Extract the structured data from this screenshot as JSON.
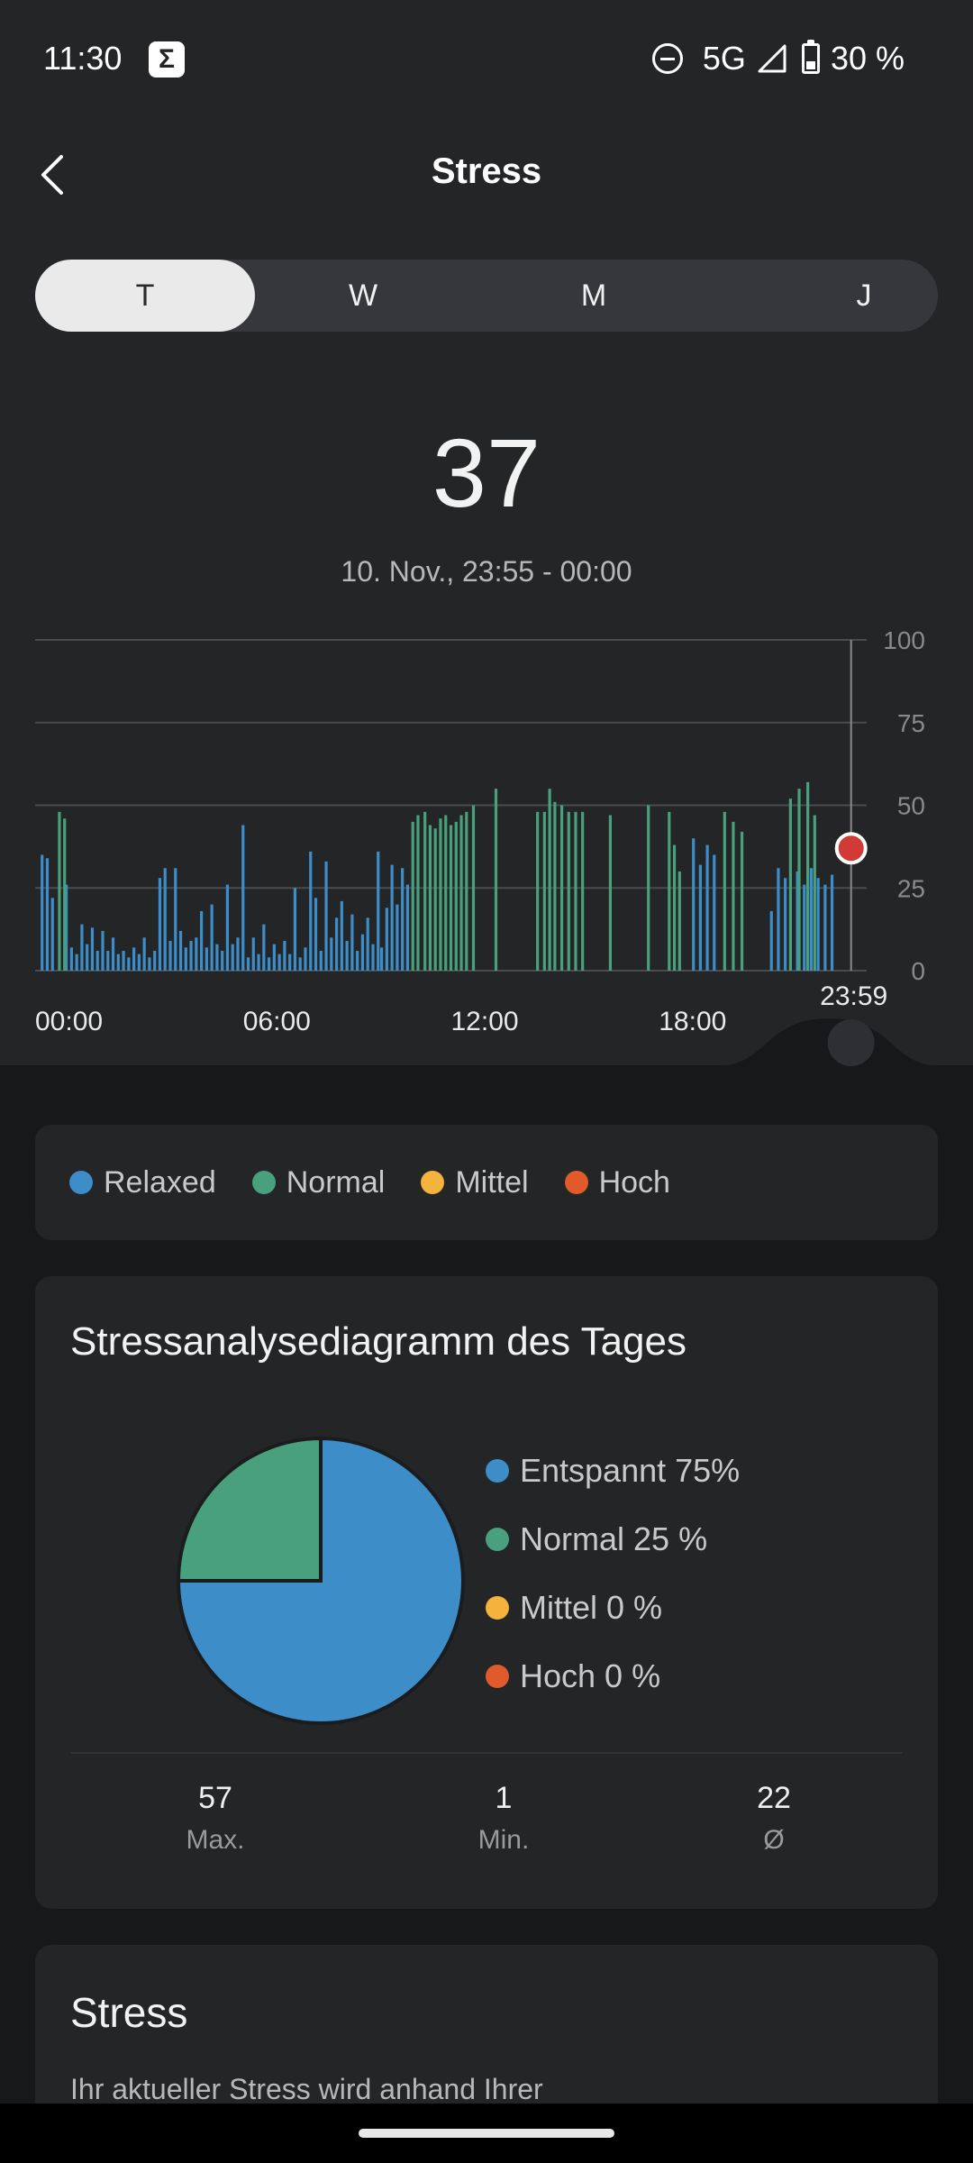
{
  "status_bar": {
    "time": "11:30",
    "app_icon_glyph": "Σ",
    "network": "5G",
    "battery": "30 %",
    "icons": [
      "dnd-icon",
      "signal-icon",
      "battery-icon"
    ]
  },
  "header": {
    "title": "Stress",
    "back_icon": "chevron-left-icon"
  },
  "period_tabs": [
    {
      "label": "T",
      "active": true
    },
    {
      "label": "W",
      "active": false
    },
    {
      "label": "M",
      "active": false
    },
    {
      "label": "J",
      "active": false
    }
  ],
  "current": {
    "value": "37",
    "range": "10. Nov., 23:55 - 00:00"
  },
  "colors": {
    "relaxed": "#3d8dc8",
    "normal": "#48a07c",
    "mittel": "#f3b33d",
    "hoch": "#e05a2b",
    "cursor_dot": "#d13a35"
  },
  "chart_data": {
    "type": "bar",
    "y_ticks": [
      "100",
      "75",
      "50",
      "25",
      "0"
    ],
    "ylim": [
      0,
      100
    ],
    "x_ticks": [
      "00:00",
      "06:00",
      "12:00",
      "18:00"
    ],
    "x_range_hours": [
      0,
      24
    ],
    "cursor": {
      "label": "23:59",
      "value": 37
    },
    "series": [
      {
        "name": "Relaxed",
        "color": "#3d8dc8",
        "points": [
          [
            0.2,
            35
          ],
          [
            0.35,
            34
          ],
          [
            0.5,
            22
          ],
          [
            0.9,
            26
          ],
          [
            1.05,
            7
          ],
          [
            1.2,
            5
          ],
          [
            1.35,
            14
          ],
          [
            1.5,
            8
          ],
          [
            1.65,
            13
          ],
          [
            1.8,
            6
          ],
          [
            1.95,
            12
          ],
          [
            2.1,
            6
          ],
          [
            2.25,
            10
          ],
          [
            2.4,
            5
          ],
          [
            2.55,
            6
          ],
          [
            2.7,
            4
          ],
          [
            2.85,
            7
          ],
          [
            3.0,
            5
          ],
          [
            3.15,
            10
          ],
          [
            3.3,
            4
          ],
          [
            3.45,
            6
          ],
          [
            3.6,
            28
          ],
          [
            3.75,
            31
          ],
          [
            3.9,
            9
          ],
          [
            4.05,
            31
          ],
          [
            4.2,
            12
          ],
          [
            4.35,
            7
          ],
          [
            4.5,
            9
          ],
          [
            4.65,
            10
          ],
          [
            4.8,
            18
          ],
          [
            4.95,
            7
          ],
          [
            5.1,
            20
          ],
          [
            5.25,
            8
          ],
          [
            5.4,
            6
          ],
          [
            5.55,
            26
          ],
          [
            5.7,
            8
          ],
          [
            5.85,
            10
          ],
          [
            6.0,
            44
          ],
          [
            6.15,
            4
          ],
          [
            6.3,
            10
          ],
          [
            6.45,
            5
          ],
          [
            6.6,
            14
          ],
          [
            6.75,
            4
          ],
          [
            6.9,
            8
          ],
          [
            7.05,
            5
          ],
          [
            7.2,
            9
          ],
          [
            7.35,
            5
          ],
          [
            7.5,
            25
          ],
          [
            7.65,
            4
          ],
          [
            7.8,
            7
          ],
          [
            7.95,
            36
          ],
          [
            8.1,
            22
          ],
          [
            8.25,
            6
          ],
          [
            8.4,
            33
          ],
          [
            8.55,
            10
          ],
          [
            8.7,
            16
          ],
          [
            8.85,
            21
          ],
          [
            9.0,
            9
          ],
          [
            9.15,
            17
          ],
          [
            9.3,
            6
          ],
          [
            9.45,
            11
          ],
          [
            9.6,
            16
          ],
          [
            9.75,
            8
          ],
          [
            9.9,
            36
          ],
          [
            10.0,
            7
          ],
          [
            10.15,
            19
          ],
          [
            10.3,
            32
          ],
          [
            10.45,
            20
          ],
          [
            10.6,
            31
          ],
          [
            10.75,
            26
          ],
          [
            19.0,
            40
          ],
          [
            19.2,
            32
          ],
          [
            19.4,
            38
          ],
          [
            19.6,
            35
          ],
          [
            21.25,
            18
          ],
          [
            21.45,
            31
          ],
          [
            21.65,
            28
          ],
          [
            22.0,
            30
          ],
          [
            22.2,
            26
          ],
          [
            22.4,
            31
          ],
          [
            22.6,
            28
          ],
          [
            22.8,
            26
          ],
          [
            23.0,
            29
          ]
        ]
      },
      {
        "name": "Normal",
        "color": "#48a07c",
        "points": [
          [
            0.7,
            48
          ],
          [
            0.85,
            46
          ],
          [
            10.9,
            45
          ],
          [
            11.05,
            47
          ],
          [
            11.25,
            48
          ],
          [
            11.4,
            44
          ],
          [
            11.55,
            43
          ],
          [
            11.7,
            46
          ],
          [
            11.85,
            47
          ],
          [
            12.0,
            44
          ],
          [
            12.15,
            45
          ],
          [
            12.3,
            47
          ],
          [
            12.45,
            48
          ],
          [
            12.65,
            50
          ],
          [
            13.3,
            55
          ],
          [
            14.5,
            48
          ],
          [
            14.7,
            48
          ],
          [
            14.85,
            55
          ],
          [
            15.0,
            51
          ],
          [
            15.2,
            50
          ],
          [
            15.4,
            48
          ],
          [
            15.6,
            48
          ],
          [
            15.8,
            48
          ],
          [
            16.6,
            47
          ],
          [
            17.7,
            50
          ],
          [
            18.3,
            48
          ],
          [
            18.45,
            38
          ],
          [
            18.6,
            30
          ],
          [
            19.9,
            48
          ],
          [
            20.15,
            45
          ],
          [
            20.4,
            42
          ],
          [
            21.8,
            52
          ],
          [
            22.05,
            55
          ],
          [
            22.3,
            57
          ],
          [
            22.5,
            47
          ]
        ]
      }
    ]
  },
  "legend": [
    {
      "label": "Relaxed",
      "color": "#3d8dc8"
    },
    {
      "label": "Normal",
      "color": "#48a07c"
    },
    {
      "label": "Mittel",
      "color": "#f3b33d"
    },
    {
      "label": "Hoch",
      "color": "#e05a2b"
    }
  ],
  "analysis": {
    "title": "Stressanalysediagramm des Tages",
    "pie": [
      {
        "label": "Entspannt 75%",
        "value": 75,
        "color": "#3d8dc8"
      },
      {
        "label": "Normal 25 %",
        "value": 25,
        "color": "#48a07c"
      },
      {
        "label": "Mittel 0 %",
        "value": 0,
        "color": "#f3b33d"
      },
      {
        "label": "Hoch 0 %",
        "value": 0,
        "color": "#e05a2b"
      }
    ],
    "stats": [
      {
        "value": "57",
        "label": "Max."
      },
      {
        "value": "1",
        "label": "Min."
      },
      {
        "value": "22",
        "label": "Ø"
      }
    ]
  },
  "info": {
    "title": "Stress",
    "text": "Ihr aktueller Stress wird anhand Ihrer"
  }
}
